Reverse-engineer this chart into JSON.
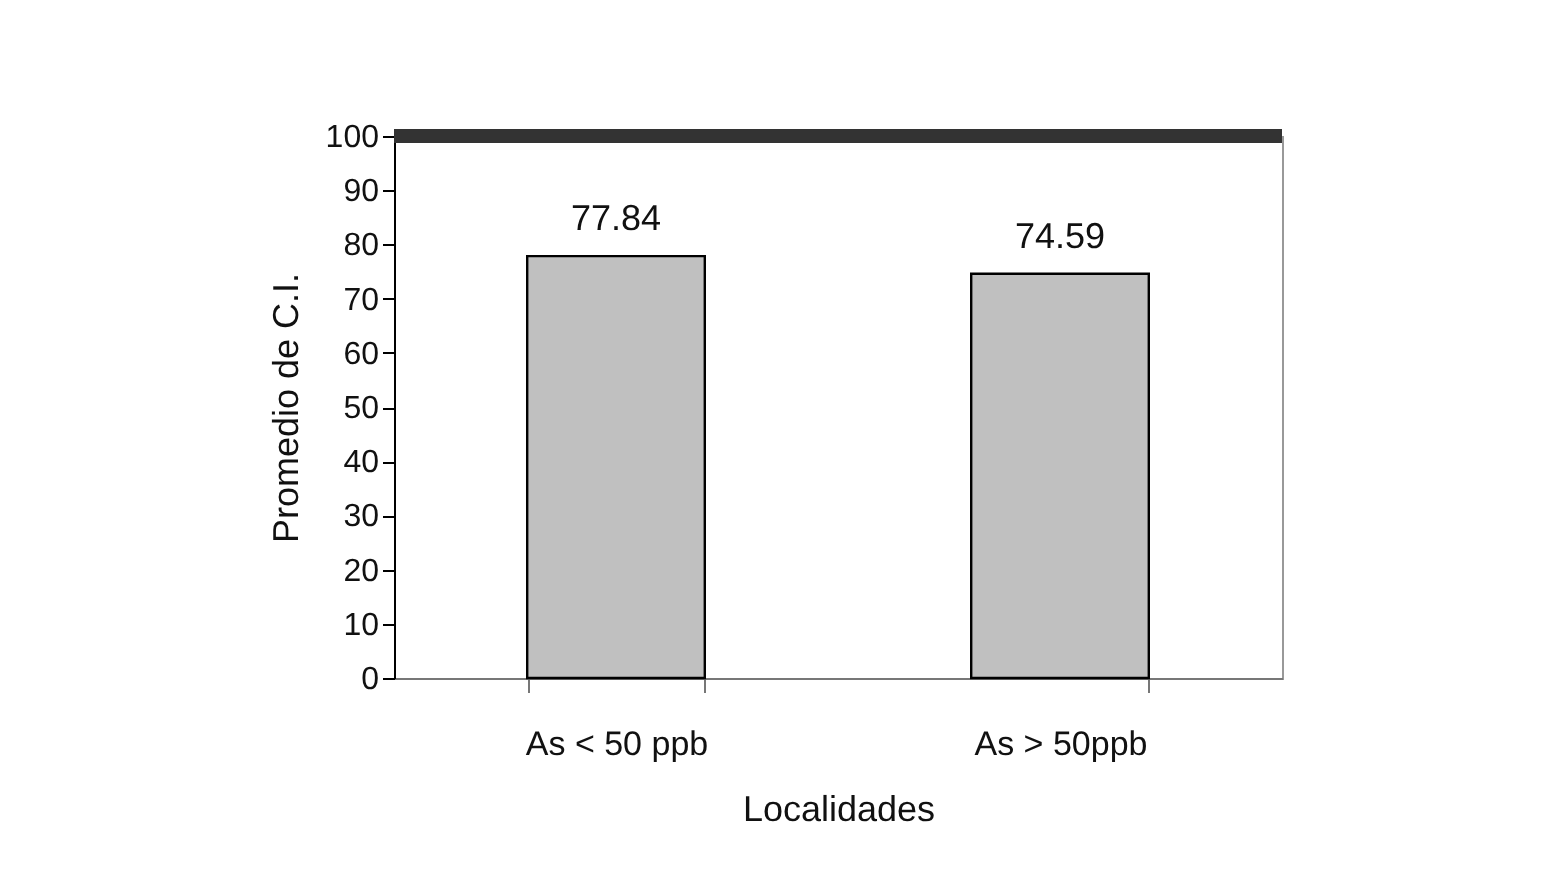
{
  "chart_data": {
    "type": "bar",
    "xlabel": "Localidades",
    "ylabel": "Promedio de C.I.",
    "categories": [
      "As < 50 ppb",
      "As > 50ppb"
    ],
    "values": [
      77.84,
      74.59
    ],
    "color": "#c0c0c0",
    "ylim": [
      0,
      100
    ],
    "yticks": [
      0,
      10,
      20,
      30,
      40,
      50,
      60,
      70,
      80,
      90,
      100
    ],
    "ref_lines": [
      {
        "axis": "y",
        "value": 100,
        "color": "#333333"
      }
    ],
    "data_labels": true,
    "grid": false
  }
}
